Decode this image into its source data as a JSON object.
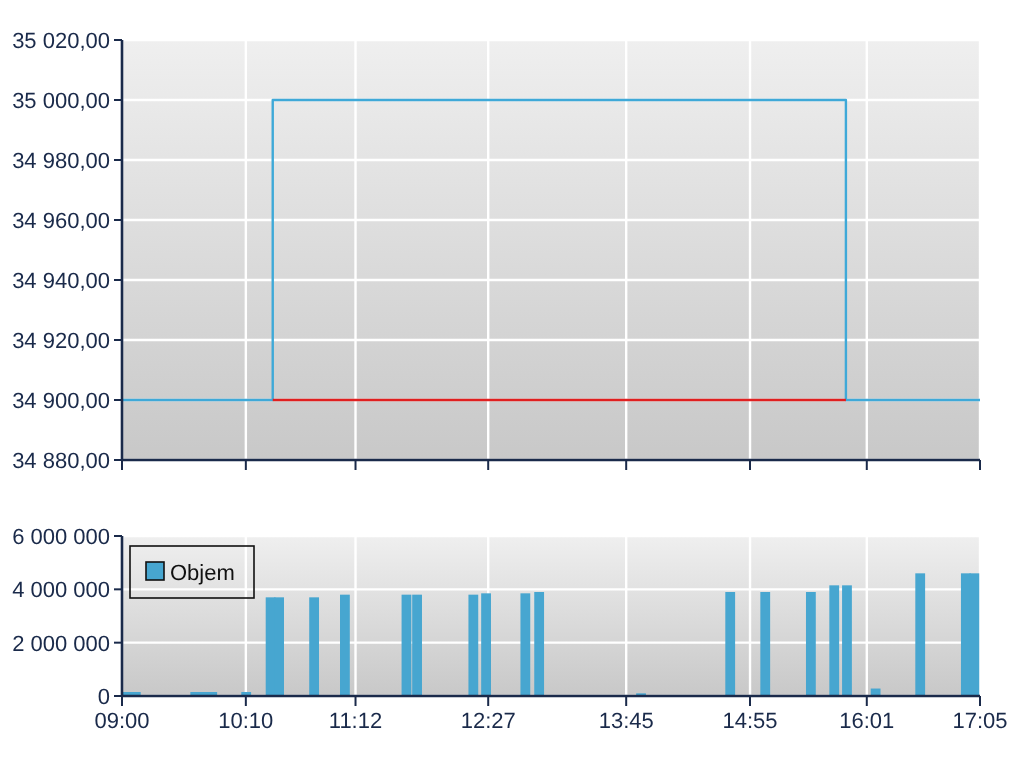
{
  "chart_data": [
    {
      "type": "line",
      "xlim": [
        9,
        17.0833
      ],
      "ylim": [
        34880,
        35020
      ],
      "yticks": [
        {
          "value": 34880,
          "label": "34 880,00"
        },
        {
          "value": 34900,
          "label": "34 900,00"
        },
        {
          "value": 34920,
          "label": "34 920,00"
        },
        {
          "value": 34940,
          "label": "34 940,00"
        },
        {
          "value": 34960,
          "label": "34 960,00"
        },
        {
          "value": 34980,
          "label": "34 980,00"
        },
        {
          "value": 35000,
          "label": "35 000,00"
        },
        {
          "value": 35020,
          "label": "35 020,00"
        }
      ],
      "grid": true,
      "legend": false,
      "tick_labels": "y",
      "series": [
        {
          "color": "#3fa9d8",
          "x": [
            9,
            10.42,
            10.42,
            15.82,
            15.82,
            17.0833
          ],
          "values": [
            34900,
            34900,
            35000,
            35000,
            34900,
            34900
          ]
        },
        {
          "color": "#e02020",
          "x": [
            10.42,
            15.82
          ],
          "values": [
            34900,
            34900
          ]
        }
      ]
    },
    {
      "type": "bar",
      "xlim": [
        9,
        17.0833
      ],
      "xticks": [
        {
          "value": 9,
          "label": "09:00"
        },
        {
          "value": 10.1667,
          "label": "10:10"
        },
        {
          "value": 11.2,
          "label": "11:12"
        },
        {
          "value": 12.45,
          "label": "12:27"
        },
        {
          "value": 13.75,
          "label": "13:45"
        },
        {
          "value": 14.9167,
          "label": "14:55"
        },
        {
          "value": 16.0167,
          "label": "16:01"
        },
        {
          "value": 17.0833,
          "label": "17:05"
        }
      ],
      "ylim": [
        0,
        6000000
      ],
      "yticks": [
        {
          "value": 0,
          "label": "0"
        },
        {
          "value": 2000000,
          "label": "2 000 000"
        },
        {
          "value": 4000000,
          "label": "4 000 000"
        },
        {
          "value": 6000000,
          "label": "6 000 000"
        }
      ],
      "grid": true,
      "legend": "top left",
      "series": [
        {
          "name": "Objem",
          "color": "#47a6d0",
          "x": [
            9.05,
            9.13,
            9.69,
            9.77,
            9.85,
            10.17,
            10.4,
            10.48,
            10.81,
            11.1,
            11.68,
            11.78,
            12.31,
            12.43,
            12.8,
            12.93,
            13.89,
            14.73,
            15.06,
            15.49,
            15.71,
            15.83,
            16.1,
            16.52,
            16.95,
            17.03
          ],
          "values": [
            150000,
            150000,
            150000,
            150000,
            150000,
            150000,
            3700000,
            3700000,
            3700000,
            3800000,
            3800000,
            3800000,
            3800000,
            3850000,
            3850000,
            3900000,
            100000,
            3900000,
            3900000,
            3900000,
            4150000,
            4150000,
            280000,
            4600000,
            4600000,
            4600000
          ]
        }
      ]
    }
  ]
}
